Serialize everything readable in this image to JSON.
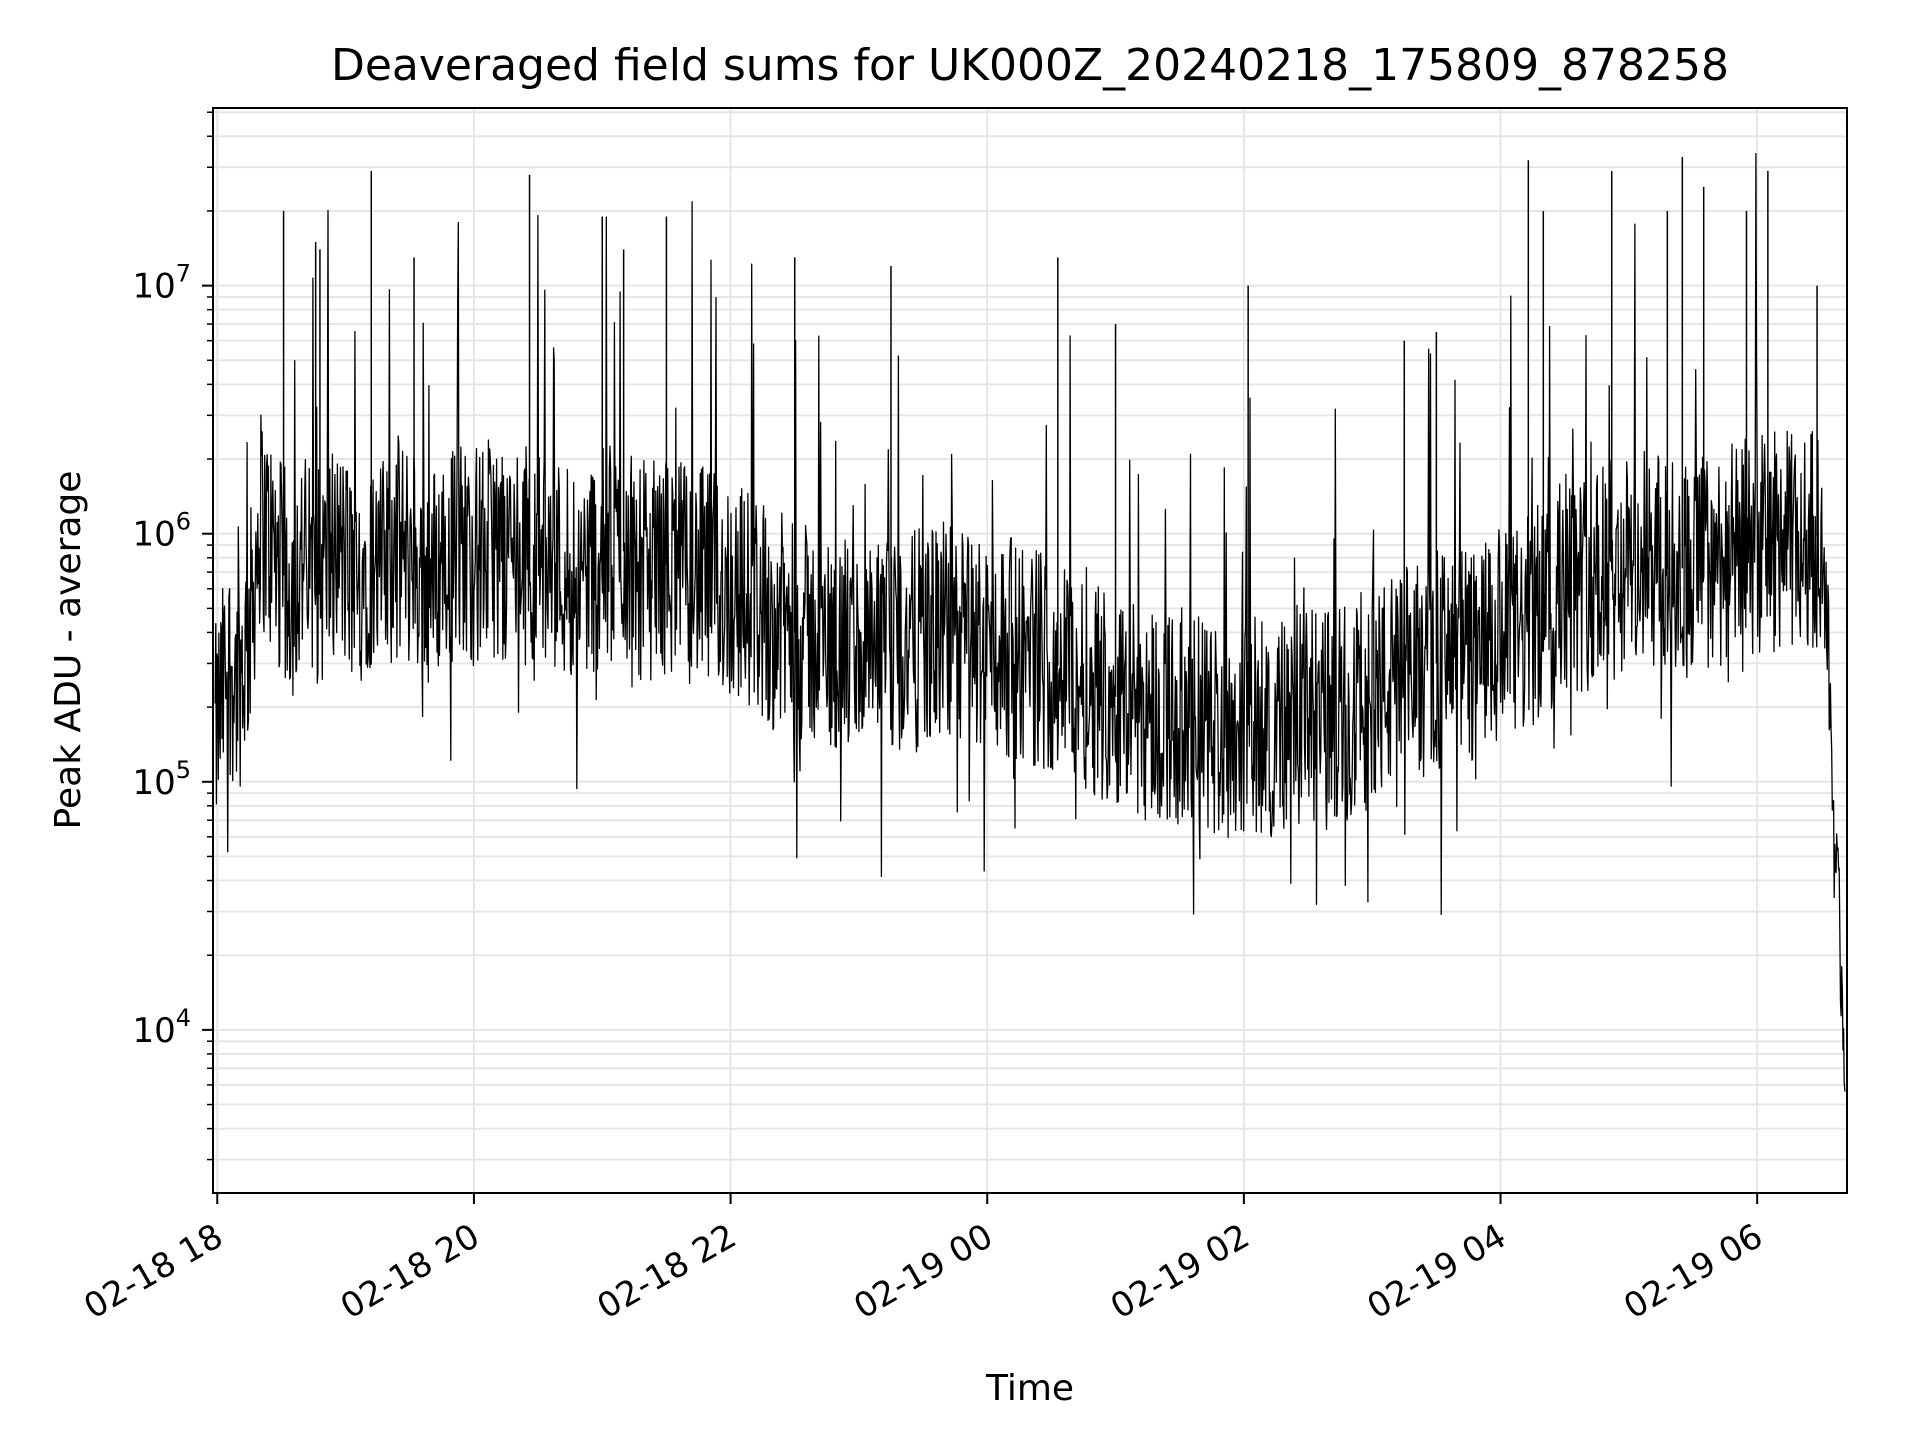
{
  "chart_data": {
    "type": "line",
    "title": "Deaveraged field sums for UK000Z_20240218_175809_878258",
    "xlabel": "Time",
    "ylabel": "Peak ADU - average",
    "yscale": "log",
    "xlim": [
      "2024-02-18T17:58",
      "2024-02-19T06:42"
    ],
    "ylim": [
      2200,
      52000000
    ],
    "grid": true,
    "x_ticks": [
      {
        "t": "2024-02-18T18:00",
        "label": "02-18 18"
      },
      {
        "t": "2024-02-18T20:00",
        "label": "02-18 20"
      },
      {
        "t": "2024-02-18T22:00",
        "label": "02-18 22"
      },
      {
        "t": "2024-02-19T00:00",
        "label": "02-19 00"
      },
      {
        "t": "2024-02-19T02:00",
        "label": "02-19 02"
      },
      {
        "t": "2024-02-19T04:00",
        "label": "02-19 04"
      },
      {
        "t": "2024-02-19T06:00",
        "label": "02-19 06"
      }
    ],
    "y_ticks": [
      {
        "value": 10000,
        "base": "10",
        "exp": "4"
      },
      {
        "value": 100000,
        "base": "10",
        "exp": "5"
      },
      {
        "value": 1000000,
        "base": "10",
        "exp": "6"
      },
      {
        "value": 10000000,
        "base": "10",
        "exp": "7"
      }
    ],
    "line_color": "#000000",
    "series": [
      {
        "x": [
          "2024-02-18T17:59",
          "2024-02-18T18:05",
          "2024-02-18T18:10",
          "2024-02-18T18:15",
          "2024-02-18T18:20",
          "2024-02-18T18:25",
          "2024-02-18T18:30",
          "2024-02-18T18:35",
          "2024-02-18T18:40",
          "2024-02-18T18:45",
          "2024-02-18T18:50",
          "2024-02-18T18:55",
          "2024-02-18T19:00",
          "2024-02-18T19:05",
          "2024-02-18T19:10",
          "2024-02-18T19:15",
          "2024-02-18T19:20",
          "2024-02-18T19:25",
          "2024-02-18T19:30",
          "2024-02-18T19:35",
          "2024-02-18T19:40",
          "2024-02-18T19:45",
          "2024-02-18T19:50",
          "2024-02-18T19:55",
          "2024-02-18T20:00",
          "2024-02-18T20:10",
          "2024-02-18T20:20",
          "2024-02-18T20:30",
          "2024-02-18T20:40",
          "2024-02-18T20:50",
          "2024-02-18T21:00",
          "2024-02-18T21:10",
          "2024-02-18T21:20",
          "2024-02-18T21:30",
          "2024-02-18T21:40",
          "2024-02-18T21:50",
          "2024-02-18T22:00",
          "2024-02-18T22:10",
          "2024-02-18T22:20",
          "2024-02-18T22:30",
          "2024-02-18T22:40",
          "2024-02-18T22:50",
          "2024-02-18T23:00",
          "2024-02-18T23:10",
          "2024-02-18T23:20",
          "2024-02-18T23:30",
          "2024-02-18T23:40",
          "2024-02-18T23:50",
          "2024-02-19T00:00",
          "2024-02-19T00:10",
          "2024-02-19T00:20",
          "2024-02-19T00:30",
          "2024-02-19T00:40",
          "2024-02-19T00:50",
          "2024-02-19T01:00",
          "2024-02-19T01:10",
          "2024-02-19T01:20",
          "2024-02-19T01:30",
          "2024-02-19T01:40",
          "2024-02-19T01:50",
          "2024-02-19T02:00",
          "2024-02-19T02:10",
          "2024-02-19T02:20",
          "2024-02-19T02:30",
          "2024-02-19T02:40",
          "2024-02-19T02:50",
          "2024-02-19T03:00",
          "2024-02-19T03:10",
          "2024-02-19T03:20",
          "2024-02-19T03:30",
          "2024-02-19T03:40",
          "2024-02-19T03:50",
          "2024-02-19T04:00",
          "2024-02-19T04:10",
          "2024-02-19T04:20",
          "2024-02-19T04:30",
          "2024-02-19T04:40",
          "2024-02-19T04:50",
          "2024-02-19T05:00",
          "2024-02-19T05:10",
          "2024-02-19T05:20",
          "2024-02-19T05:30",
          "2024-02-19T05:40",
          "2024-02-19T05:50",
          "2024-02-19T06:00",
          "2024-02-19T06:10",
          "2024-02-19T06:20",
          "2024-02-19T06:30",
          "2024-02-19T06:33",
          "2024-02-19T06:36",
          "2024-02-19T06:39",
          "2024-02-19T06:41"
        ],
        "y": [
          150000,
          300000,
          250000,
          400000,
          1200000,
          900000,
          700000,
          600000,
          800000,
          650000,
          700000,
          900000,
          750000,
          600000,
          800000,
          700000,
          750000,
          900000,
          800000,
          700000,
          650000,
          800000,
          850000,
          900000,
          800000,
          900000,
          850000,
          800000,
          750000,
          700000,
          800000,
          850000,
          700000,
          750000,
          700000,
          650000,
          600000,
          550000,
          450000,
          400000,
          380000,
          350000,
          330000,
          320000,
          350000,
          380000,
          400000,
          380000,
          360000,
          350000,
          330000,
          300000,
          280000,
          250000,
          220000,
          200000,
          190000,
          180000,
          170000,
          160000,
          170000,
          165000,
          170000,
          175000,
          180000,
          200000,
          220000,
          250000,
          280000,
          300000,
          320000,
          330000,
          350000,
          400000,
          500000,
          600000,
          650000,
          700000,
          750000,
          800000,
          700000,
          750000,
          800000,
          850000,
          900000,
          950000,
          900000,
          1000000,
          400000,
          60000,
          20000,
          8000
        ]
      }
    ],
    "peaks": {
      "x": [
        "2024-02-18T18:31",
        "2024-02-18T18:46",
        "2024-02-18T18:48",
        "2024-02-18T19:12",
        "2024-02-18T19:32",
        "2024-02-18T20:26",
        "2024-02-18T21:00",
        "2024-02-18T21:10",
        "2024-02-18T21:30",
        "2024-02-18T22:30",
        "2024-02-18T23:15",
        "2024-02-19T00:33",
        "2024-02-19T01:00",
        "2024-02-19T02:02",
        "2024-02-19T03:15",
        "2024-02-19T03:30",
        "2024-02-19T04:13",
        "2024-02-19T04:20",
        "2024-02-19T04:52",
        "2024-02-19T05:18",
        "2024-02-19T05:25",
        "2024-02-19T05:35",
        "2024-02-19T05:55",
        "2024-02-19T06:05",
        "2024-02-19T06:28"
      ],
      "y": [
        20000000,
        15000000,
        14000000,
        29000000,
        13000000,
        28000000,
        19000000,
        14000000,
        19000000,
        13000000,
        12000000,
        13000000,
        7000000,
        10000000,
        6000000,
        6500000,
        32000000,
        20000000,
        29000000,
        20000000,
        33000000,
        25000000,
        20000000,
        29000000,
        10000000
      ]
    }
  }
}
